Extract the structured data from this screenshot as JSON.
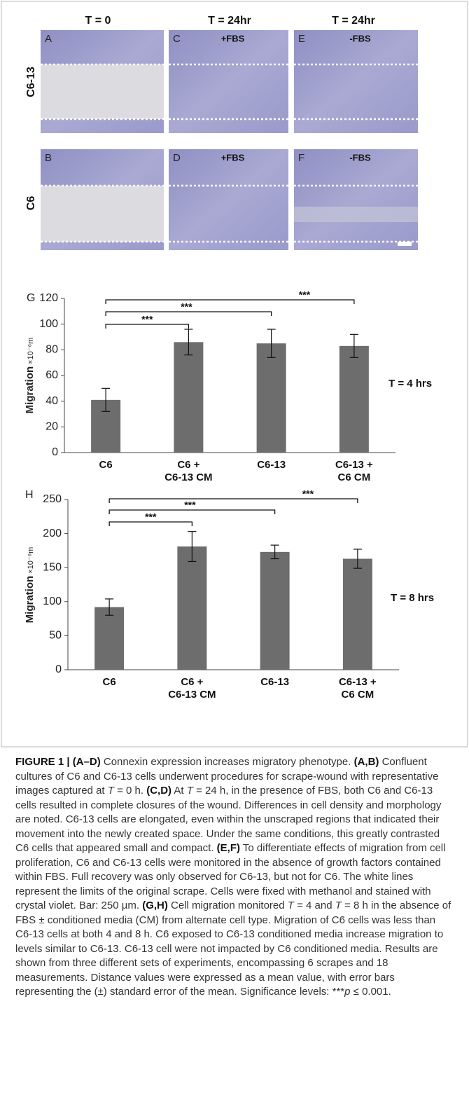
{
  "micrographs": {
    "columns": [
      "T = 0",
      "T = 24hr",
      "T = 24hr"
    ],
    "rows": [
      "C6-13",
      "C6"
    ],
    "panels": [
      {
        "letter": "A"
      },
      {
        "letter": "C",
        "condition": "+FBS"
      },
      {
        "letter": "E",
        "condition": "-FBS"
      },
      {
        "letter": "B"
      },
      {
        "letter": "D",
        "condition": "+FBS"
      },
      {
        "letter": "F",
        "condition": "-FBS"
      }
    ]
  },
  "chart_data": [
    {
      "type": "bar",
      "panel": "G",
      "y_label": "Migration",
      "y_unit": "×10⁻⁶m",
      "annotation": "T = 4 hrs",
      "categories": [
        "C6",
        "C6 +\nC6-13 CM",
        "C6-13",
        "C6-13 +\nC6 CM"
      ],
      "values": [
        41,
        86,
        85,
        83
      ],
      "errors": [
        9,
        10,
        11,
        9
      ],
      "color": "#6d6d6d",
      "ylim": [
        0,
        120
      ],
      "yticks": [
        0,
        20,
        40,
        60,
        80,
        100,
        120
      ],
      "significance": [
        "***",
        "***",
        "***"
      ]
    },
    {
      "type": "bar",
      "panel": "H",
      "y_label": "Migration",
      "y_unit": "×10⁻⁶m",
      "annotation": "T = 8 hrs",
      "categories": [
        "C6",
        "C6 +\nC6-13 CM",
        "C6-13",
        "C6-13 +\nC6 CM"
      ],
      "values": [
        92,
        181,
        173,
        163
      ],
      "errors": [
        12,
        22,
        10,
        14
      ],
      "color": "#6d6d6d",
      "ylim": [
        0,
        250
      ],
      "yticks": [
        0,
        50,
        100,
        150,
        200,
        250
      ],
      "significance": [
        "***",
        "***",
        "***"
      ]
    }
  ],
  "caption": [
    {
      "text": "FIGURE 1 | (A–D)",
      "style": "bold"
    },
    {
      "text": " Connexin expression increases migratory phenotype. "
    },
    {
      "text": "(A,B)",
      "style": "bold"
    },
    {
      "text": " Confluent cultures of C6 and C6-13 cells underwent procedures for scrape-wound with representative images captured at "
    },
    {
      "text": "T",
      "style": "italic"
    },
    {
      "text": " = 0 h. "
    },
    {
      "text": "(C,D)",
      "style": "bold"
    },
    {
      "text": " At "
    },
    {
      "text": "T",
      "style": "italic"
    },
    {
      "text": " = 24 h, in the presence of FBS, both C6 and C6-13 cells resulted in complete closures of the wound. Differences in cell density and morphology are noted. C6-13 cells are elongated, even within the unscraped regions that indicated their movement into the newly created space. Under the same conditions, this greatly contrasted C6 cells that appeared small and compact. "
    },
    {
      "text": "(E,F)",
      "style": "bold"
    },
    {
      "text": " To differentiate effects of migration from cell proliferation, C6 and C6-13 cells were monitored in the absence of growth factors contained within FBS. Full recovery was only observed for C6-13, but not for C6. The white lines represent the limits of the original scrape. Cells were fixed with methanol and stained with crystal violet. Bar: 250 µm. "
    },
    {
      "text": "(G,H)",
      "style": "bold"
    },
    {
      "text": " Cell migration monitored "
    },
    {
      "text": "T",
      "style": "italic"
    },
    {
      "text": " = 4 and "
    },
    {
      "text": "T",
      "style": "italic"
    },
    {
      "text": " = 8 h in the absence of FBS ± conditioned media (CM) from alternate cell type. Migration of C6 cells was less than C6-13 cells at both 4 and 8 h. C6 exposed to C6-13 conditioned media increase migration to levels similar to C6-13. C6-13 cell were not impacted by C6 conditioned media. Results are shown from three different sets of experiments, encompassing 6 scrapes and 18 measurements. Distance values were expressed as a mean value, with error bars representing the (±) standard error of the mean. Significance levels: ***"
    },
    {
      "text": "p",
      "style": "italic"
    },
    {
      "text": " ≤ 0.001."
    }
  ]
}
